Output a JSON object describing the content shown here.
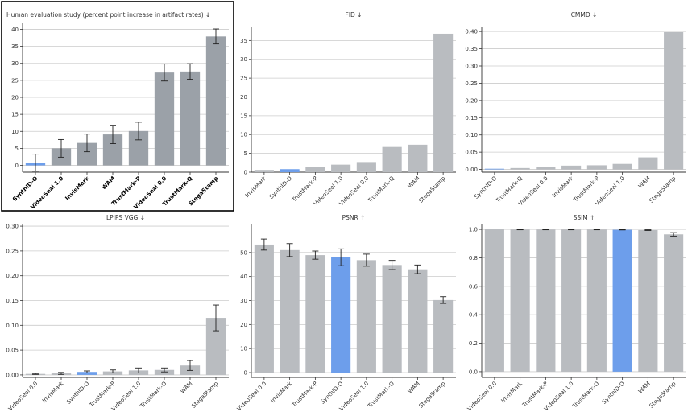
{
  "figure": {
    "colors": {
      "highlight": "#6d9eeb",
      "bar_dark": "#9ba1a8",
      "bar_light": "#b9bcc0",
      "grid": "#cccccc",
      "axis": "#333333",
      "frame": "#000000"
    }
  },
  "chart_data": [
    {
      "type": "bar",
      "title": "Human evaluation study (percent point increase in artifact rates) ↓",
      "categories": [
        "SynthID-O",
        "VideoSeal 1.0",
        "InvisMark",
        "WAM",
        "TrustMark-P",
        "VideoSeal 0.0",
        "TrustMark-Q",
        "StegaStamp"
      ],
      "values": [
        0.8,
        5.0,
        6.6,
        9.1,
        10.1,
        27.3,
        27.6,
        37.9
      ],
      "error": [
        2.5,
        2.6,
        2.6,
        2.7,
        2.6,
        2.5,
        2.3,
        2.2
      ],
      "highlight": "SynthID-O",
      "ylim": [
        -2,
        42
      ],
      "yticks": [
        0,
        5,
        10,
        15,
        20,
        25,
        30,
        35,
        40
      ],
      "ytick_labels": [
        "0",
        "5",
        "10",
        "15",
        "20",
        "25",
        "30",
        "35",
        "40"
      ],
      "grid": true,
      "boxed": true,
      "bold_ticks": true
    },
    {
      "type": "bar",
      "title": "FID ↓",
      "categories": [
        "InvisMark",
        "SynthID-O",
        "TrustMark-P",
        "VideoSeal 1.0",
        "VideoSeal 0.0",
        "TrustMark-Q",
        "WAM",
        "StegaStamp"
      ],
      "values": [
        0.6,
        0.8,
        1.4,
        2.0,
        2.7,
        6.7,
        7.3,
        36.8
      ],
      "highlight": "SynthID-O",
      "ylim": [
        0,
        38.5
      ],
      "yticks": [
        0,
        5,
        10,
        15,
        20,
        25,
        30,
        35
      ],
      "ytick_labels": [
        "0",
        "5",
        "10",
        "15",
        "20",
        "25",
        "30",
        "35"
      ],
      "grid": true
    },
    {
      "type": "bar",
      "title": "CMMD ↓",
      "categories": [
        "SynthID-O",
        "TrustMark-Q",
        "VideoSeal 0.0",
        "InvisMark",
        "TrustMark-P",
        "VideoSeal 1.0",
        "WAM",
        "StegaStamp"
      ],
      "values": [
        0.002,
        0.004,
        0.007,
        0.011,
        0.012,
        0.016,
        0.035,
        0.398
      ],
      "highlight": "SynthID-O",
      "ylim": [
        -0.008,
        0.412
      ],
      "yticks": [
        0,
        0.05,
        0.1,
        0.15,
        0.2,
        0.25,
        0.3,
        0.35,
        0.4
      ],
      "ytick_labels": [
        "0.00",
        "0.05",
        "0.10",
        "0.15",
        "0.20",
        "0.25",
        "0.30",
        "0.35",
        "0.40"
      ],
      "grid": true
    },
    {
      "type": "bar",
      "title": "LPIPS VGG ↓",
      "categories": [
        "VideoSeal 0.0",
        "InvisMark",
        "SynthID-O",
        "TrustMark-P",
        "VideoSeal 1.0",
        "TrustMark-Q",
        "WAM",
        "StegaStamp"
      ],
      "values": [
        0.002,
        0.003,
        0.006,
        0.007,
        0.009,
        0.01,
        0.019,
        0.115
      ],
      "error": [
        0.001,
        0.002,
        0.002,
        0.003,
        0.005,
        0.004,
        0.01,
        0.026
      ],
      "highlight": "SynthID-O",
      "ylim": [
        -0.005,
        0.305
      ],
      "yticks": [
        0,
        0.05,
        0.1,
        0.15,
        0.2,
        0.25,
        0.3
      ],
      "ytick_labels": [
        "0.00",
        "0.05",
        "0.10",
        "0.15",
        "0.20",
        "0.25",
        "0.30"
      ],
      "grid": true
    },
    {
      "type": "bar",
      "title": "PSNR ↑",
      "categories": [
        "VideoSeal 0.0",
        "InvisMark",
        "TrustMark-P",
        "SynthID-O",
        "VideoSeal 1.0",
        "TrustMark-Q",
        "WAM",
        "StegaStamp"
      ],
      "values": [
        53.3,
        51.0,
        48.9,
        48.0,
        46.8,
        44.8,
        43.0,
        30.2
      ],
      "error": [
        2.3,
        2.7,
        1.7,
        3.5,
        2.5,
        1.9,
        1.8,
        1.4
      ],
      "highlight": "SynthID-O",
      "ylim": [
        -2,
        62
      ],
      "yticks": [
        0,
        10,
        20,
        30,
        40,
        50
      ],
      "ytick_labels": [
        "0",
        "10",
        "20",
        "30",
        "40",
        "50"
      ],
      "grid": true
    },
    {
      "type": "bar",
      "title": "SSIM ↑",
      "categories": [
        "VideoSeal 0.0",
        "InvisMark",
        "TrustMark-P",
        "VideoSeal 1.0",
        "TrustMark-Q",
        "SynthID-O",
        "WAM",
        "StegaStamp"
      ],
      "values": [
        1.0,
        0.998,
        0.998,
        0.998,
        0.998,
        0.997,
        0.995,
        0.965
      ],
      "error": [
        0.0,
        0.001,
        0.001,
        0.001,
        0.001,
        0.001,
        0.003,
        0.012
      ],
      "highlight": "SynthID-O",
      "ylim": [
        -0.04,
        1.04
      ],
      "yticks": [
        0,
        0.2,
        0.4,
        0.6,
        0.8,
        1.0
      ],
      "ytick_labels": [
        "0.0",
        "0.2",
        "0.4",
        "0.6",
        "0.8",
        "1.0"
      ],
      "grid": true
    }
  ]
}
